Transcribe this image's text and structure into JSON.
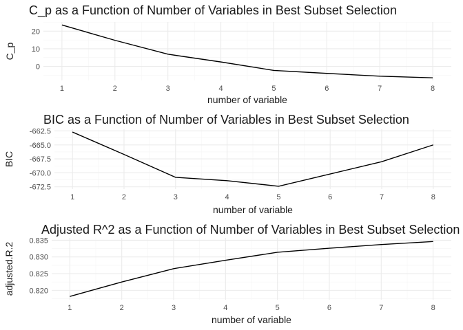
{
  "chart_data": [
    {
      "type": "line",
      "title": "C_p as a Function of Number of Variables in Best Subset Selection",
      "xlabel": "number of variable",
      "ylabel": "C_p",
      "x": [
        1,
        2,
        3,
        4,
        5,
        6,
        7,
        8
      ],
      "y": [
        23.5,
        14.8,
        6.9,
        2.5,
        -2.3,
        -4.0,
        -5.6,
        -6.5
      ],
      "x_ticks": [
        "1",
        "2",
        "3",
        "4",
        "5",
        "6",
        "7",
        "8"
      ],
      "y_ticks": [
        0,
        10,
        20
      ],
      "y_tick_labels": [
        "0",
        "10",
        "20"
      ],
      "xlim": [
        0.65,
        8.35
      ],
      "ylim": [
        -8.0,
        25.2
      ],
      "grid": true
    },
    {
      "type": "line",
      "title": "BIC as a Function of Number of Variables in Best Subset Selection",
      "xlabel": "number of variable",
      "ylabel": "BIC",
      "x": [
        1,
        2,
        3,
        4,
        5,
        6,
        7,
        8
      ],
      "y": [
        -662.7,
        -666.7,
        -670.8,
        -671.4,
        -672.4,
        -670.2,
        -668.0,
        -665.0
      ],
      "x_ticks": [
        "1",
        "2",
        "3",
        "4",
        "5",
        "6",
        "7",
        "8"
      ],
      "y_ticks": [
        -672.5,
        -670.0,
        -667.5,
        -665.0,
        -662.5
      ],
      "y_tick_labels": [
        "-672.5",
        "-670.0",
        "-667.5",
        "-665.0",
        "-662.5"
      ],
      "xlim": [
        0.65,
        8.35
      ],
      "ylim": [
        -672.9,
        -662.2
      ],
      "grid": true
    },
    {
      "type": "line",
      "title": "Adjusted R^2 as a Function of Number of Variables in Best Subset Selection",
      "xlabel": "number of variable",
      "ylabel": "adjusted.R.2",
      "x": [
        1,
        2,
        3,
        4,
        5,
        6,
        7,
        8
      ],
      "y": [
        0.8182,
        0.8225,
        0.8265,
        0.829,
        0.8314,
        0.8326,
        0.8337,
        0.8346
      ],
      "x_ticks": [
        "1",
        "2",
        "3",
        "4",
        "5",
        "6",
        "7",
        "8"
      ],
      "y_ticks": [
        0.82,
        0.825,
        0.83,
        0.835
      ],
      "y_tick_labels": [
        "0.820",
        "0.825",
        "0.830",
        "0.835"
      ],
      "xlim": [
        0.65,
        8.35
      ],
      "ylim": [
        0.8172,
        0.8357
      ],
      "grid": true
    }
  ]
}
